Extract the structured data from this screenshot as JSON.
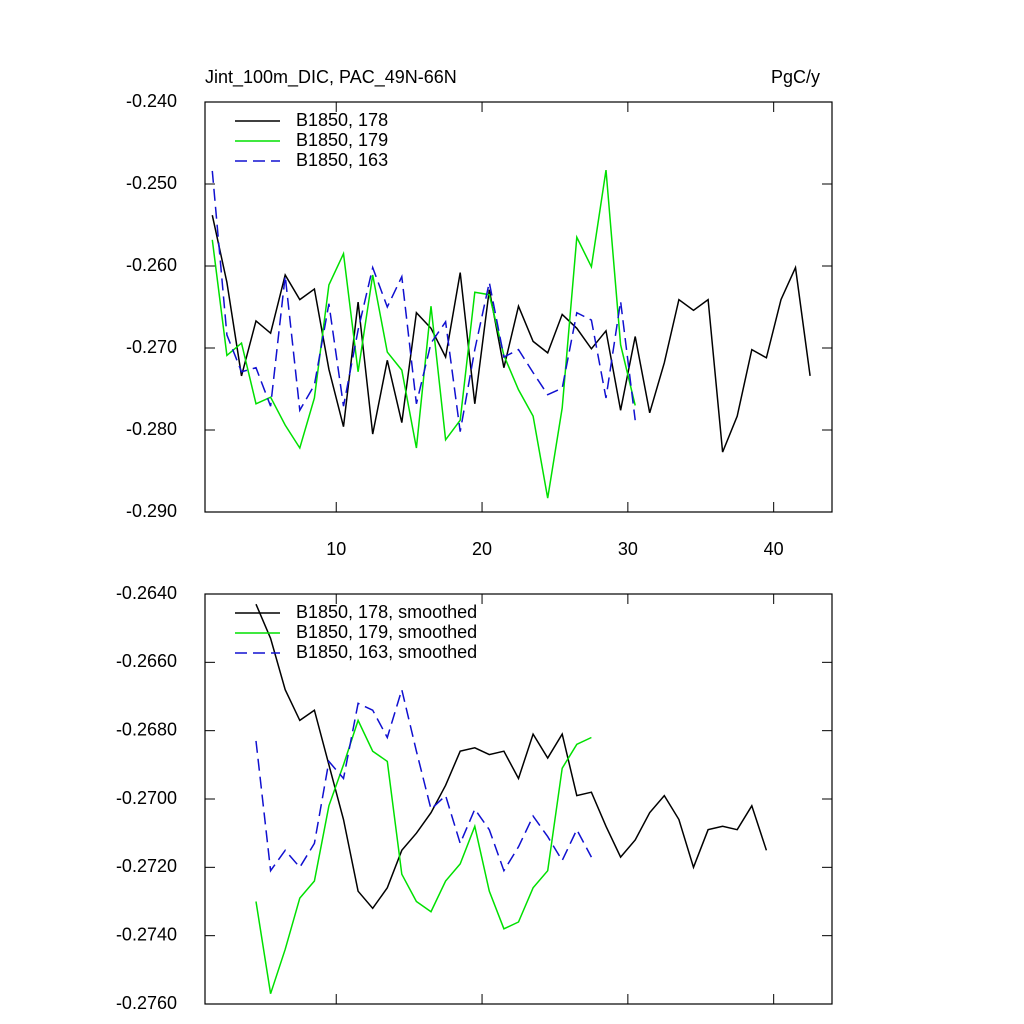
{
  "chart_data": [
    {
      "type": "line",
      "title": "Jint_100m_DIC, PAC_49N-66N",
      "units": "PgC/y",
      "xlim": [
        1,
        44
      ],
      "xticks": [
        10,
        20,
        30,
        40
      ],
      "show_xtick_labels": true,
      "ylim": [
        -0.29,
        -0.24
      ],
      "yticks": [
        {
          "value": -0.29,
          "label": "-0.290"
        },
        {
          "value": -0.28,
          "label": "-0.280"
        },
        {
          "value": -0.27,
          "label": "-0.270"
        },
        {
          "value": -0.26,
          "label": "-0.260"
        },
        {
          "value": -0.25,
          "label": "-0.250"
        },
        {
          "value": -0.24,
          "label": "-0.240"
        }
      ],
      "series": [
        {
          "name": "B1850, 178",
          "color": "#000000",
          "dashed": false,
          "x": [
            1.5,
            2.5,
            3.5,
            4.5,
            5.5,
            6.5,
            7.5,
            8.5,
            9.5,
            10.5,
            11.5,
            12.5,
            13.5,
            14.5,
            15.5,
            16.5,
            17.5,
            18.5,
            19.5,
            20.5,
            21.5,
            22.5,
            23.5,
            24.5,
            25.5,
            26.5,
            27.5,
            28.5,
            29.5,
            30.5,
            31.5,
            32.5,
            33.5,
            34.5,
            35.5,
            36.5,
            37.5,
            38.5,
            39.5,
            40.5,
            41.5,
            42.5
          ],
          "values": [
            -0.2538,
            -0.262,
            -0.2734,
            -0.2667,
            -0.2682,
            -0.2611,
            -0.2641,
            -0.2628,
            -0.2726,
            -0.2796,
            -0.2644,
            -0.2805,
            -0.2715,
            -0.2791,
            -0.2657,
            -0.2676,
            -0.2711,
            -0.2608,
            -0.2768,
            -0.2629,
            -0.2724,
            -0.2649,
            -0.2692,
            -0.2706,
            -0.2659,
            -0.2676,
            -0.2701,
            -0.2679,
            -0.2776,
            -0.2686,
            -0.2779,
            -0.2718,
            -0.2641,
            -0.2654,
            -0.2641,
            -0.2827,
            -0.2783,
            -0.2702,
            -0.2712,
            -0.2641,
            -0.2602,
            -0.2734
          ]
        },
        {
          "name": "B1850, 179",
          "color": "#00e000",
          "dashed": false,
          "x": [
            1.5,
            2.5,
            3.5,
            4.5,
            5.5,
            6.5,
            7.5,
            8.5,
            9.5,
            10.5,
            11.5,
            12.5,
            13.5,
            14.5,
            15.5,
            16.5,
            17.5,
            18.5,
            19.5,
            20.5,
            21.5,
            22.5,
            23.5,
            24.5,
            25.5,
            26.5,
            27.5,
            28.5,
            29.5,
            30.5
          ],
          "values": [
            -0.2568,
            -0.2709,
            -0.2694,
            -0.2768,
            -0.276,
            -0.2794,
            -0.2822,
            -0.2761,
            -0.2623,
            -0.2585,
            -0.2729,
            -0.2611,
            -0.2705,
            -0.2727,
            -0.2822,
            -0.2649,
            -0.2812,
            -0.2788,
            -0.2632,
            -0.2635,
            -0.2709,
            -0.2751,
            -0.2783,
            -0.2883,
            -0.2773,
            -0.2565,
            -0.2601,
            -0.2483,
            -0.2696,
            -0.277
          ]
        },
        {
          "name": "B1850, 163",
          "color": "#1010d0",
          "dashed": true,
          "x": [
            1.5,
            2.5,
            3.5,
            4.5,
            5.5,
            6.5,
            7.5,
            8.5,
            9.5,
            10.5,
            11.5,
            12.5,
            13.5,
            14.5,
            15.5,
            16.5,
            17.5,
            18.5,
            19.5,
            20.5,
            21.5,
            22.5,
            23.5,
            24.5,
            25.5,
            26.5,
            27.5,
            28.5,
            29.5,
            30.5
          ],
          "values": [
            -0.2484,
            -0.2684,
            -0.2729,
            -0.2724,
            -0.2771,
            -0.2612,
            -0.2776,
            -0.2745,
            -0.2646,
            -0.2771,
            -0.2678,
            -0.2602,
            -0.265,
            -0.2613,
            -0.2768,
            -0.2694,
            -0.2668,
            -0.2802,
            -0.2702,
            -0.262,
            -0.2711,
            -0.2702,
            -0.273,
            -0.2757,
            -0.2749,
            -0.2657,
            -0.2666,
            -0.2761,
            -0.2643,
            -0.2788
          ]
        }
      ]
    },
    {
      "type": "line",
      "xlim": [
        1,
        44
      ],
      "xticks": [
        10,
        20,
        30,
        40
      ],
      "show_xtick_labels": false,
      "ylim": [
        -0.276,
        -0.264
      ],
      "yticks": [
        {
          "value": -0.276,
          "label": "-0.2760"
        },
        {
          "value": -0.274,
          "label": "-0.2740"
        },
        {
          "value": -0.272,
          "label": "-0.2720"
        },
        {
          "value": -0.27,
          "label": "-0.2700"
        },
        {
          "value": -0.268,
          "label": "-0.2680"
        },
        {
          "value": -0.266,
          "label": "-0.2660"
        },
        {
          "value": -0.264,
          "label": "-0.2640"
        }
      ],
      "series": [
        {
          "name": "B1850, 178, smoothed",
          "color": "#000000",
          "dashed": false,
          "x": [
            4.5,
            5.5,
            6.5,
            7.5,
            8.5,
            9.5,
            10.5,
            11.5,
            12.5,
            13.5,
            14.5,
            15.5,
            16.5,
            17.5,
            18.5,
            19.5,
            20.5,
            21.5,
            22.5,
            23.5,
            24.5,
            25.5,
            26.5,
            27.5,
            28.5,
            29.5,
            30.5,
            31.5,
            32.5,
            33.5,
            34.5,
            35.5,
            36.5,
            37.5,
            38.5,
            39.5
          ],
          "values": [
            -0.2643,
            -0.2653,
            -0.2668,
            -0.2677,
            -0.2674,
            -0.269,
            -0.2706,
            -0.2727,
            -0.2732,
            -0.2726,
            -0.2715,
            -0.271,
            -0.2704,
            -0.2696,
            -0.2686,
            -0.2685,
            -0.2687,
            -0.2686,
            -0.2694,
            -0.2681,
            -0.2688,
            -0.2681,
            -0.2699,
            -0.2698,
            -0.2708,
            -0.2717,
            -0.2712,
            -0.2704,
            -0.2699,
            -0.2706,
            -0.272,
            -0.2709,
            -0.2708,
            -0.2709,
            -0.2702,
            -0.2715
          ]
        },
        {
          "name": "B1850, 179, smoothed",
          "color": "#00e000",
          "dashed": false,
          "x": [
            4.5,
            5.5,
            6.5,
            7.5,
            8.5,
            9.5,
            10.5,
            11.5,
            12.5,
            13.5,
            14.5,
            15.5,
            16.5,
            17.5,
            18.5,
            19.5,
            20.5,
            21.5,
            22.5,
            23.5,
            24.5,
            25.5,
            26.5,
            27.5
          ],
          "values": [
            -0.273,
            -0.2757,
            -0.2744,
            -0.2729,
            -0.2724,
            -0.2702,
            -0.269,
            -0.2677,
            -0.2686,
            -0.2689,
            -0.2722,
            -0.273,
            -0.2733,
            -0.2724,
            -0.2719,
            -0.2708,
            -0.2727,
            -0.2738,
            -0.2736,
            -0.2726,
            -0.2721,
            -0.2691,
            -0.2684,
            -0.2682
          ]
        },
        {
          "name": "B1850, 163, smoothed",
          "color": "#1010d0",
          "dashed": true,
          "x": [
            4.5,
            5.5,
            6.5,
            7.5,
            8.5,
            9.5,
            10.5,
            11.5,
            12.5,
            13.5,
            14.5,
            15.5,
            16.5,
            17.5,
            18.5,
            19.5,
            20.5,
            21.5,
            22.5,
            23.5,
            24.5,
            25.5,
            26.5,
            27.5
          ],
          "values": [
            -0.2683,
            -0.2721,
            -0.2715,
            -0.272,
            -0.2713,
            -0.2689,
            -0.2694,
            -0.2672,
            -0.2674,
            -0.2682,
            -0.2668,
            -0.2686,
            -0.2703,
            -0.2699,
            -0.2713,
            -0.2703,
            -0.2709,
            -0.2721,
            -0.2714,
            -0.2705,
            -0.2711,
            -0.2718,
            -0.2709,
            -0.2717
          ]
        }
      ]
    }
  ]
}
